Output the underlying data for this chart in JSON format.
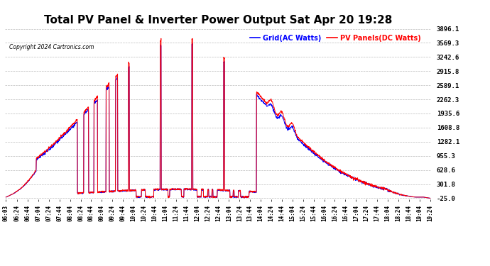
{
  "title": "Total PV Panel & Inverter Power Output Sat Apr 20 19:28",
  "copyright": "Copyright 2024 Cartronics.com",
  "legend_blue": "Grid(AC Watts)",
  "legend_red": "PV Panels(DC Watts)",
  "yticks": [
    3896.1,
    3569.3,
    3242.6,
    2915.8,
    2589.1,
    2262.3,
    1935.6,
    1608.8,
    1282.1,
    955.3,
    628.6,
    301.8,
    -25.0
  ],
  "ymin": -25.0,
  "ymax": 3896.1,
  "bg_color": "#ffffff",
  "grid_color": "#bbbbbb",
  "title_fontsize": 11,
  "blue_color": "#0000ff",
  "red_color": "#ff0000",
  "black_color": "#000000",
  "xtick_labels": [
    "06:03",
    "06:24",
    "06:44",
    "07:04",
    "07:24",
    "07:44",
    "08:04",
    "08:24",
    "08:44",
    "09:04",
    "09:24",
    "09:44",
    "10:04",
    "10:24",
    "10:44",
    "11:04",
    "11:24",
    "11:44",
    "12:04",
    "12:24",
    "12:44",
    "13:04",
    "13:24",
    "13:44",
    "14:04",
    "14:24",
    "14:44",
    "15:04",
    "15:24",
    "15:44",
    "16:04",
    "16:24",
    "16:44",
    "17:04",
    "17:24",
    "17:44",
    "18:04",
    "18:24",
    "18:44",
    "19:04",
    "19:24"
  ]
}
